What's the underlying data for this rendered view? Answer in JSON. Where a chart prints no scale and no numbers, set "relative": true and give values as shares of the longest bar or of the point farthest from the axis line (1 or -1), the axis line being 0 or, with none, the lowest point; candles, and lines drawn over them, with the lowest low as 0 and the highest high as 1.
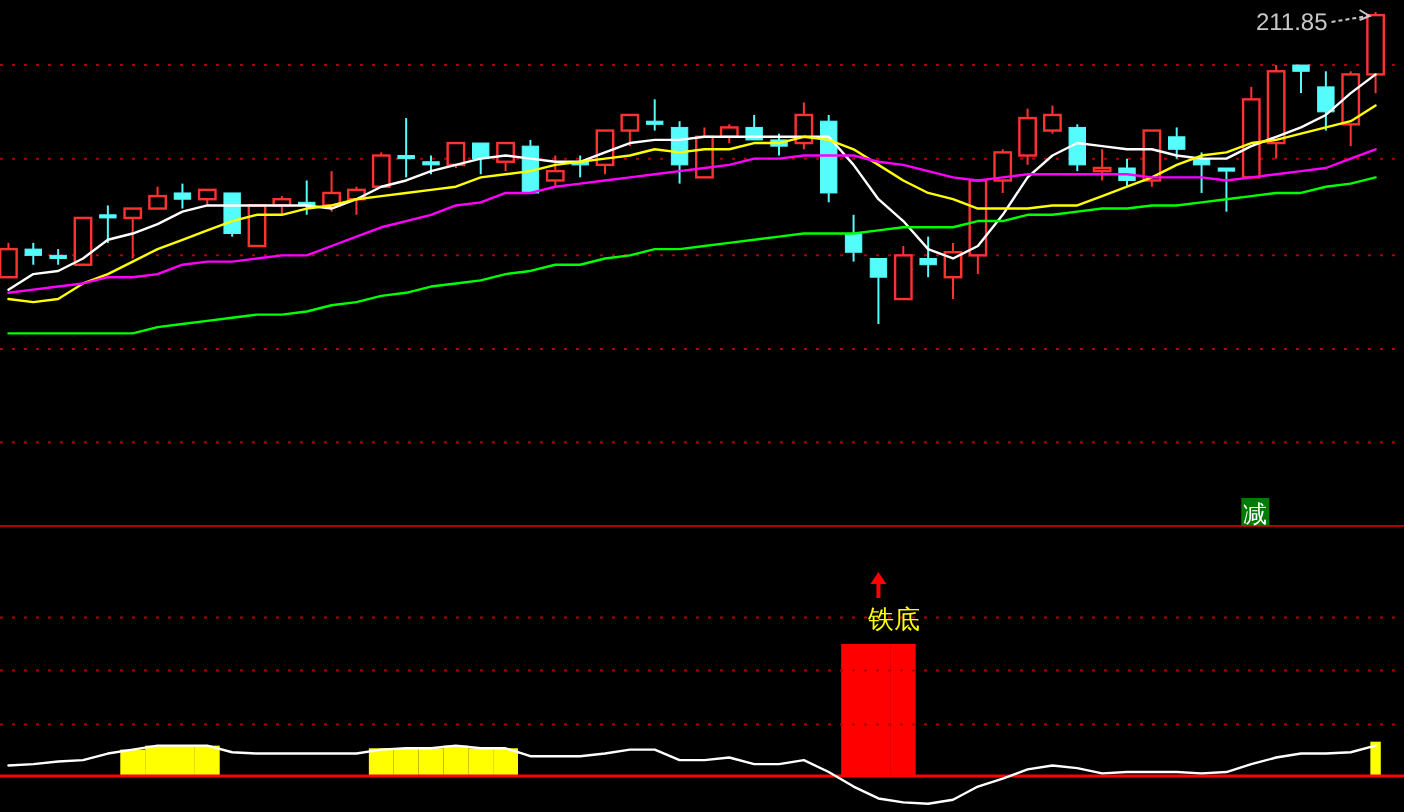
{
  "chart_data": [
    {
      "type": "candlestick",
      "relative": true,
      "ref_lines": [
        {
          "axis": "y",
          "value": 0.83,
          "color": "#b00000",
          "line_style": "dotted"
        },
        {
          "axis": "y",
          "value": 0.53,
          "color": "#b00000",
          "line_style": "dotted"
        },
        {
          "axis": "y",
          "value": 0.22,
          "color": "#b00000",
          "line_style": "dotted"
        },
        {
          "axis": "y",
          "value": -0.08,
          "color": "#b00000",
          "line_style": "dotted"
        },
        {
          "axis": "y",
          "value": -0.38,
          "color": "#b00000",
          "line_style": "dotted"
        }
      ],
      "categories": [
        null,
        null,
        null,
        null,
        null,
        null,
        null,
        null,
        null,
        null,
        null,
        null,
        null,
        null,
        null,
        null,
        null,
        null,
        null,
        null,
        null,
        null,
        null,
        null,
        null,
        null,
        null,
        null,
        null,
        null,
        null,
        null,
        null,
        null,
        null,
        null,
        null,
        null,
        null,
        null,
        null,
        null,
        null,
        null,
        null,
        null,
        null,
        null,
        null,
        null,
        null,
        null,
        null,
        null,
        null,
        null
      ],
      "ohlc": [
        [
          0.15,
          0.26,
          0.15,
          0.24
        ],
        [
          0.24,
          0.26,
          0.19,
          0.22
        ],
        [
          0.22,
          0.24,
          0.19,
          0.21
        ],
        [
          0.19,
          0.34,
          0.19,
          0.34
        ],
        [
          0.35,
          0.38,
          0.26,
          0.34
        ],
        [
          0.34,
          0.37,
          0.21,
          0.37
        ],
        [
          0.37,
          0.44,
          0.37,
          0.41
        ],
        [
          0.42,
          0.45,
          0.37,
          0.4
        ],
        [
          0.4,
          0.43,
          0.38,
          0.43
        ],
        [
          0.42,
          0.42,
          0.28,
          0.29
        ],
        [
          0.25,
          0.38,
          0.25,
          0.38
        ],
        [
          0.38,
          0.41,
          0.35,
          0.4
        ],
        [
          0.39,
          0.46,
          0.35,
          0.38
        ],
        [
          0.38,
          0.49,
          0.36,
          0.42
        ],
        [
          0.4,
          0.44,
          0.35,
          0.43
        ],
        [
          0.44,
          0.55,
          0.44,
          0.54
        ],
        [
          0.54,
          0.66,
          0.47,
          0.53
        ],
        [
          0.52,
          0.54,
          0.48,
          0.51
        ],
        [
          0.51,
          0.58,
          0.5,
          0.58
        ],
        [
          0.58,
          0.58,
          0.48,
          0.53
        ],
        [
          0.52,
          0.58,
          0.49,
          0.58
        ],
        [
          0.57,
          0.59,
          0.42,
          0.42
        ],
        [
          0.46,
          0.54,
          0.44,
          0.49
        ],
        [
          0.52,
          0.54,
          0.47,
          0.51
        ],
        [
          0.51,
          0.62,
          0.48,
          0.62
        ],
        [
          0.62,
          0.67,
          0.57,
          0.67
        ],
        [
          0.65,
          0.72,
          0.62,
          0.64
        ],
        [
          0.63,
          0.65,
          0.45,
          0.51
        ],
        [
          0.47,
          0.63,
          0.47,
          0.6
        ],
        [
          0.6,
          0.64,
          0.58,
          0.63
        ],
        [
          0.63,
          0.67,
          0.59,
          0.59
        ],
        [
          0.59,
          0.61,
          0.54,
          0.57
        ],
        [
          0.58,
          0.71,
          0.56,
          0.67
        ],
        [
          0.65,
          0.67,
          0.39,
          0.42
        ],
        [
          0.29,
          0.35,
          0.2,
          0.23
        ],
        [
          0.21,
          0.21,
          0,
          0.15
        ],
        [
          0.08,
          0.25,
          0.08,
          0.22
        ],
        [
          0.21,
          0.28,
          0.15,
          0.19
        ],
        [
          0.15,
          0.26,
          0.08,
          0.23
        ],
        [
          0.22,
          0.46,
          0.16,
          0.46
        ],
        [
          0.46,
          0.56,
          0.42,
          0.55
        ],
        [
          0.54,
          0.69,
          0.51,
          0.66
        ],
        [
          0.62,
          0.7,
          0.61,
          0.67
        ],
        [
          0.63,
          0.64,
          0.49,
          0.51
        ],
        [
          0.49,
          0.56,
          0.46,
          0.5
        ],
        [
          0.5,
          0.53,
          0.44,
          0.46
        ],
        [
          0.46,
          0.62,
          0.44,
          0.62
        ],
        [
          0.6,
          0.63,
          0.53,
          0.56
        ],
        [
          0.53,
          0.55,
          0.42,
          0.51
        ],
        [
          0.5,
          0.5,
          0.36,
          0.49
        ],
        [
          0.47,
          0.76,
          0.47,
          0.72
        ],
        [
          0.58,
          0.83,
          0.53,
          0.81
        ],
        [
          0.83,
          0.83,
          0.74,
          0.81
        ],
        [
          0.76,
          0.81,
          0.62,
          0.68
        ],
        [
          0.64,
          0.81,
          0.57,
          0.8
        ],
        [
          0.8,
          1,
          0.74,
          0.99
        ]
      ],
      "colors": [
        "#ff3232",
        "#54fcfc",
        "#54fcfc",
        "#ff3232",
        "#54fcfc",
        "#ff3232",
        "#ff3232",
        "#54fcfc",
        "#ff3232",
        "#54fcfc",
        "#ff3232",
        "#ff3232",
        "#54fcfc",
        "#ff3232",
        "#ff3232",
        "#ff3232",
        "#54fcfc",
        "#54fcfc",
        "#ff3232",
        "#54fcfc",
        "#ff3232",
        "#54fcfc",
        "#ff3232",
        "#54fcfc",
        "#ff3232",
        "#ff3232",
        "#54fcfc",
        "#54fcfc",
        "#ff3232",
        "#ff3232",
        "#54fcfc",
        "#54fcfc",
        "#ff3232",
        "#54fcfc",
        "#54fcfc",
        "#54fcfc",
        "#ff3232",
        "#54fcfc",
        "#ff3232",
        "#ff3232",
        "#ff3232",
        "#ff3232",
        "#ff3232",
        "#54fcfc",
        "#ff3232",
        "#54fcfc",
        "#ff3232",
        "#54fcfc",
        "#54fcfc",
        "#54fcfc",
        "#ff3232",
        "#ff3232",
        "#54fcfc",
        "#54fcfc",
        "#ff3232",
        "#ff3232"
      ],
      "series": [
        {
          "type": "line",
          "color": "#ffffff",
          "values": [
            0.11,
            0.16,
            0.17,
            0.21,
            0.27,
            0.29,
            0.32,
            0.36,
            0.38,
            0.38,
            0.38,
            0.38,
            0.38,
            0.37,
            0.4,
            0.44,
            0.46,
            0.49,
            0.51,
            0.53,
            0.54,
            0.53,
            0.52,
            0.52,
            0.55,
            0.58,
            0.59,
            0.59,
            0.6,
            0.6,
            0.6,
            0.6,
            0.6,
            0.6,
            0.51,
            0.4,
            0.33,
            0.24,
            0.21,
            0.25,
            0.35,
            0.47,
            0.54,
            0.58,
            0.57,
            0.56,
            0.56,
            0.54,
            0.53,
            0.53,
            0.57,
            0.6,
            0.63,
            0.67,
            0.74,
            0.8
          ]
        },
        {
          "type": "line",
          "color": "#ffff00",
          "values": [
            0.08,
            0.07,
            0.08,
            0.13,
            0.16,
            0.2,
            0.24,
            0.27,
            0.3,
            0.33,
            0.35,
            0.35,
            0.37,
            0.38,
            0.4,
            0.41,
            0.42,
            0.43,
            0.44,
            0.47,
            0.48,
            0.49,
            0.51,
            0.52,
            0.53,
            0.54,
            0.56,
            0.55,
            0.56,
            0.56,
            0.58,
            0.58,
            0.6,
            0.59,
            0.56,
            0.51,
            0.46,
            0.42,
            0.4,
            0.37,
            0.37,
            0.37,
            0.38,
            0.38,
            0.41,
            0.44,
            0.47,
            0.51,
            0.54,
            0.55,
            0.58,
            0.59,
            0.61,
            0.63,
            0.65,
            0.7
          ]
        },
        {
          "type": "line",
          "color": "#ff00ff",
          "values": [
            0.1,
            0.11,
            0.12,
            0.13,
            0.15,
            0.15,
            0.16,
            0.19,
            0.2,
            0.2,
            0.21,
            0.22,
            0.22,
            0.25,
            0.28,
            0.31,
            0.33,
            0.35,
            0.38,
            0.39,
            0.42,
            0.42,
            0.44,
            0.45,
            0.46,
            0.47,
            0.48,
            0.49,
            0.5,
            0.51,
            0.53,
            0.53,
            0.54,
            0.54,
            0.54,
            0.52,
            0.51,
            0.49,
            0.47,
            0.46,
            0.47,
            0.48,
            0.48,
            0.48,
            0.48,
            0.48,
            0.47,
            0.47,
            0.47,
            0.46,
            0.47,
            0.48,
            0.49,
            0.5,
            0.53,
            0.56
          ]
        },
        {
          "type": "line",
          "color": "#00ff00",
          "values": [
            -0.03,
            -0.03,
            -0.03,
            -0.03,
            -0.03,
            -0.03,
            -0.01,
            0,
            0.01,
            0.02,
            0.03,
            0.03,
            0.04,
            0.06,
            0.07,
            0.09,
            0.1,
            0.12,
            0.13,
            0.14,
            0.16,
            0.17,
            0.19,
            0.19,
            0.21,
            0.22,
            0.24,
            0.24,
            0.25,
            0.26,
            0.27,
            0.28,
            0.29,
            0.29,
            0.29,
            0.3,
            0.31,
            0.31,
            0.31,
            0.33,
            0.33,
            0.35,
            0.35,
            0.36,
            0.37,
            0.37,
            0.38,
            0.38,
            0.39,
            0.4,
            0.41,
            0.42,
            0.42,
            0.44,
            0.45,
            0.47
          ]
        }
      ],
      "annotations": [
        "211.85"
      ]
    },
    {
      "type": "bar",
      "relative": true,
      "ref_lines": [
        {
          "axis": "y",
          "value": 1.2,
          "color": "#b00000",
          "line_style": "dotted"
        },
        {
          "axis": "y",
          "value": 0.8,
          "color": "#b00000",
          "line_style": "dotted"
        },
        {
          "axis": "y",
          "value": 0.39,
          "color": "#b00000",
          "line_style": "dotted"
        },
        {
          "axis": "y",
          "value": 0,
          "color": "#ff0000",
          "line_style": "solid"
        }
      ],
      "categories": [
        null,
        null,
        null,
        null,
        null,
        null,
        null,
        null,
        null,
        null,
        null,
        null,
        null,
        null,
        null,
        null,
        null,
        null,
        null,
        null,
        null,
        null,
        null,
        null,
        null,
        null,
        null,
        null,
        null,
        null,
        null,
        null,
        null,
        null,
        null,
        null,
        null,
        null,
        null,
        null,
        null,
        null,
        null,
        null,
        null,
        null,
        null,
        null,
        null,
        null,
        null,
        null,
        null,
        null,
        null,
        null
      ],
      "series": [
        {
          "color": "#ffff00",
          "values": [
            null,
            null,
            null,
            null,
            null,
            0.2,
            0.23,
            0.23,
            0.23,
            null,
            null,
            null,
            null,
            null,
            null,
            0.21,
            0.21,
            0.21,
            0.23,
            0.21,
            0.21,
            null,
            null,
            null,
            null,
            null,
            null,
            null,
            null,
            null,
            null,
            null,
            null,
            null,
            null,
            null,
            null,
            null,
            null,
            null,
            null,
            null,
            null,
            null,
            null,
            null,
            null,
            null,
            null,
            null,
            null,
            null,
            null,
            null,
            null,
            0.26
          ]
        },
        {
          "color": "#ff0000",
          "values": [
            null,
            null,
            null,
            null,
            null,
            null,
            null,
            null,
            null,
            null,
            null,
            null,
            null,
            null,
            null,
            null,
            null,
            null,
            null,
            null,
            null,
            null,
            null,
            null,
            null,
            null,
            null,
            null,
            null,
            null,
            null,
            null,
            null,
            null,
            1,
            1,
            1,
            null,
            null,
            null,
            null,
            null,
            null,
            null,
            null,
            null,
            null,
            null,
            null,
            null,
            null,
            null,
            null,
            null,
            null,
            null
          ]
        },
        {
          "type": "line",
          "color": "#ffffff",
          "values": [
            0.08,
            0.09,
            0.11,
            0.12,
            0.17,
            0.2,
            0.23,
            0.23,
            0.23,
            0.18,
            0.17,
            0.17,
            0.17,
            0.17,
            0.17,
            0.2,
            0.21,
            0.21,
            0.23,
            0.21,
            0.21,
            0.15,
            0.15,
            0.15,
            0.17,
            0.2,
            0.2,
            0.12,
            0.12,
            0.14,
            0.09,
            0.09,
            0.12,
            0.03,
            -0.08,
            -0.17,
            -0.2,
            -0.21,
            -0.18,
            -0.08,
            -0.02,
            0.05,
            0.08,
            0.06,
            0.02,
            0.03,
            0.03,
            0.03,
            0.02,
            0.03,
            0.09,
            0.14,
            0.17,
            0.17,
            0.18,
            0.23
          ]
        }
      ],
      "annotations": [
        "铁底",
        "减"
      ]
    }
  ]
}
